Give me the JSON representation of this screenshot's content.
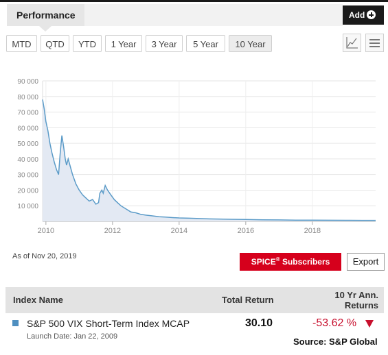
{
  "header": {
    "tab_label": "Performance",
    "add_label": "Add"
  },
  "range_buttons": [
    "MTD",
    "QTD",
    "YTD",
    "1 Year",
    "3 Year",
    "5 Year",
    "10 Year"
  ],
  "active_range": "10 Year",
  "tools": {
    "line_chart_icon": "line-chart-icon",
    "menu_icon": "hamburger-menu-icon"
  },
  "chart_data": {
    "type": "area",
    "y_ticks": [
      "90 000",
      "80 000",
      "70 000",
      "60 000",
      "50 000",
      "40 000",
      "30 000",
      "20 000",
      "10 000"
    ],
    "x_ticks": [
      "2010",
      "2012",
      "2014",
      "2016",
      "2018"
    ],
    "ylim": [
      0,
      90000
    ],
    "xlim": [
      2009.9,
      2019.9
    ],
    "grid": true,
    "series": [
      {
        "color": "#5b9bc8",
        "fill": "#e3e9f3",
        "points": [
          [
            2009.9,
            78000
          ],
          [
            2009.95,
            72000
          ],
          [
            2010.0,
            64000
          ],
          [
            2010.06,
            58000
          ],
          [
            2010.12,
            50000
          ],
          [
            2010.18,
            44000
          ],
          [
            2010.25,
            38000
          ],
          [
            2010.32,
            33000
          ],
          [
            2010.38,
            30000
          ],
          [
            2010.43,
            44000
          ],
          [
            2010.48,
            55000
          ],
          [
            2010.53,
            48000
          ],
          [
            2010.58,
            40000
          ],
          [
            2010.62,
            36000
          ],
          [
            2010.67,
            40000
          ],
          [
            2010.72,
            36000
          ],
          [
            2010.8,
            30000
          ],
          [
            2010.9,
            24000
          ],
          [
            2011.0,
            20000
          ],
          [
            2011.1,
            17000
          ],
          [
            2011.2,
            15000
          ],
          [
            2011.3,
            13000
          ],
          [
            2011.4,
            14000
          ],
          [
            2011.5,
            11000
          ],
          [
            2011.58,
            12000
          ],
          [
            2011.62,
            18000
          ],
          [
            2011.68,
            20000
          ],
          [
            2011.72,
            18000
          ],
          [
            2011.78,
            23000
          ],
          [
            2011.85,
            20000
          ],
          [
            2011.95,
            17000
          ],
          [
            2012.05,
            14000
          ],
          [
            2012.15,
            12000
          ],
          [
            2012.25,
            10000
          ],
          [
            2012.4,
            8000
          ],
          [
            2012.55,
            6000
          ],
          [
            2012.7,
            5500
          ],
          [
            2012.85,
            4500
          ],
          [
            2013.0,
            4000
          ],
          [
            2013.2,
            3500
          ],
          [
            2013.4,
            3000
          ],
          [
            2013.6,
            2700
          ],
          [
            2013.8,
            2400
          ],
          [
            2014.0,
            2200
          ],
          [
            2014.3,
            2000
          ],
          [
            2014.6,
            1800
          ],
          [
            2014.9,
            1600
          ],
          [
            2015.2,
            1500
          ],
          [
            2015.6,
            1300
          ],
          [
            2016.0,
            1200
          ],
          [
            2016.5,
            1000
          ],
          [
            2017.0,
            900
          ],
          [
            2017.5,
            800
          ],
          [
            2018.0,
            750
          ],
          [
            2018.5,
            700
          ],
          [
            2019.0,
            650
          ],
          [
            2019.5,
            620
          ],
          [
            2019.9,
            600
          ]
        ]
      }
    ]
  },
  "as_of": "As of Nov 20, 2019",
  "spice_button": {
    "label": "SPICE",
    "reg": "®",
    "suffix": " Subscribers"
  },
  "export_label": "Export",
  "table": {
    "col_name": "Index Name",
    "col_total": "Total Return",
    "col_ann_line1": "10 Yr Ann.",
    "col_ann_line2": "Returns",
    "row": {
      "name": "S&P 500 VIX Short-Term Index MCAP",
      "launch": "Launch Date: Jan 22, 2009",
      "total_return": "30.10",
      "ann_return": "-53.62 %"
    }
  },
  "source": "Source: S&P Global"
}
